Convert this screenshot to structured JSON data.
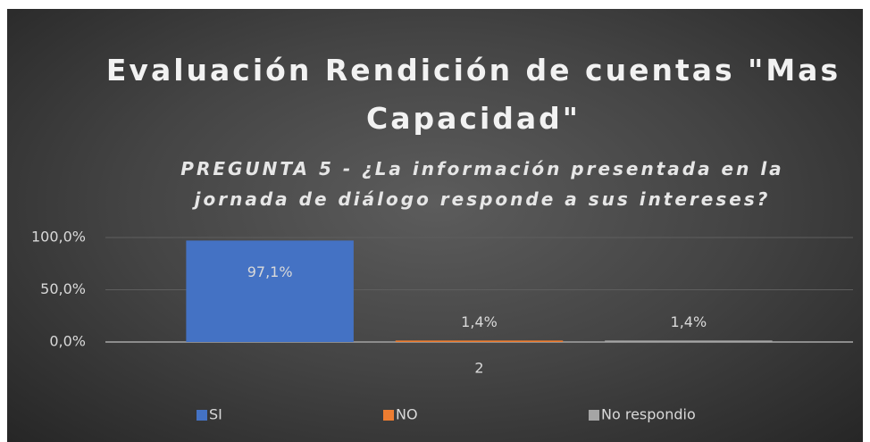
{
  "chart_data": {
    "type": "bar",
    "title": "Evaluación Rendición de cuentas \"Mas Capacidad\"",
    "subtitle": "PREGUNTA 5 - ¿La información presentada en la jornada de diálogo responde a sus intereses?",
    "categories": [
      "2"
    ],
    "series": [
      {
        "name": "SI",
        "color": "#4472c4",
        "values": [
          97.1
        ],
        "value_labels": [
          "97,1%"
        ]
      },
      {
        "name": "NO",
        "color": "#ed7d31",
        "values": [
          1.4
        ],
        "value_labels": [
          "1,4%"
        ]
      },
      {
        "name": "No respondio",
        "color": "#a5a5a5",
        "values": [
          1.4
        ],
        "value_labels": [
          "1,4%"
        ]
      }
    ],
    "ylim": [
      0,
      100
    ],
    "yticks": [
      {
        "value": 0,
        "label": "0,0%"
      },
      {
        "value": 50,
        "label": "50,0%"
      },
      {
        "value": 100,
        "label": "100,0%"
      }
    ],
    "grid": true,
    "legend": "bottom"
  }
}
